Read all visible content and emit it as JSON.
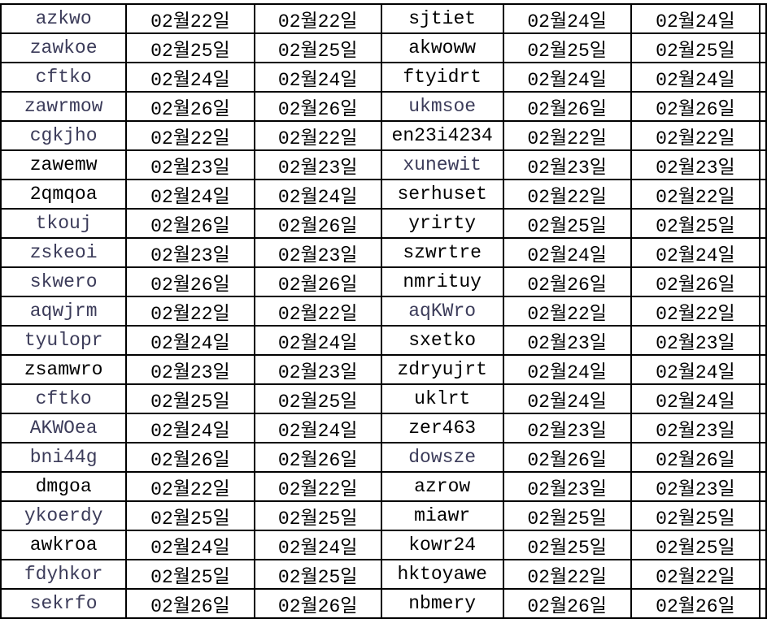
{
  "sheet": {
    "rows": [
      {
        "c": [
          "azkwo",
          "02월22일",
          "02월22일",
          "sjtiet",
          "02월24일",
          "02월24일"
        ],
        "dim": [
          true,
          false,
          false,
          false,
          false,
          false
        ]
      },
      {
        "c": [
          "zawkoe",
          "02월25일",
          "02월25일",
          "akwoww",
          "02월25일",
          "02월25일"
        ],
        "dim": [
          true,
          false,
          false,
          false,
          false,
          false
        ]
      },
      {
        "c": [
          "cftko",
          "02월24일",
          "02월24일",
          "ftyidrt",
          "02월24일",
          "02월24일"
        ],
        "dim": [
          true,
          false,
          false,
          false,
          false,
          false
        ]
      },
      {
        "c": [
          "zawrmow",
          "02월26일",
          "02월26일",
          "ukmsoe",
          "02월26일",
          "02월26일"
        ],
        "dim": [
          true,
          false,
          false,
          true,
          false,
          false
        ]
      },
      {
        "c": [
          "cgkjho",
          "02월22일",
          "02월22일",
          "en23i4234",
          "02월22일",
          "02월22일"
        ],
        "dim": [
          true,
          false,
          false,
          false,
          false,
          false
        ]
      },
      {
        "c": [
          "zawemw",
          "02월23일",
          "02월23일",
          "xunewit",
          "02월23일",
          "02월23일"
        ],
        "dim": [
          false,
          false,
          false,
          true,
          false,
          false
        ]
      },
      {
        "c": [
          "2qmqoa",
          "02월24일",
          "02월24일",
          "serhuset",
          "02월22일",
          "02월22일"
        ],
        "dim": [
          false,
          false,
          false,
          false,
          false,
          false
        ]
      },
      {
        "c": [
          "tkouj",
          "02월26일",
          "02월26일",
          "yrirty",
          "02월25일",
          "02월25일"
        ],
        "dim": [
          true,
          false,
          false,
          false,
          false,
          false
        ]
      },
      {
        "c": [
          "zskeoi",
          "02월23일",
          "02월23일",
          "szwrtre",
          "02월24일",
          "02월24일"
        ],
        "dim": [
          true,
          false,
          false,
          false,
          false,
          false
        ]
      },
      {
        "c": [
          "skwero",
          "02월26일",
          "02월26일",
          "nmrituy",
          "02월26일",
          "02월26일"
        ],
        "dim": [
          true,
          false,
          false,
          false,
          false,
          false
        ]
      },
      {
        "c": [
          "aqwjrm",
          "02월22일",
          "02월22일",
          "aqKWro",
          "02월22일",
          "02월22일"
        ],
        "dim": [
          true,
          false,
          false,
          true,
          false,
          false
        ]
      },
      {
        "c": [
          "tyulopr",
          "02월24일",
          "02월24일",
          "sxetko",
          "02월23일",
          "02월23일"
        ],
        "dim": [
          true,
          false,
          false,
          false,
          false,
          false
        ]
      },
      {
        "c": [
          "zsamwro",
          "02월23일",
          "02월23일",
          "zdryujrt",
          "02월24일",
          "02월24일"
        ],
        "dim": [
          false,
          false,
          false,
          false,
          false,
          false
        ]
      },
      {
        "c": [
          "cftko",
          "02월25일",
          "02월25일",
          "uklrt",
          "02월24일",
          "02월24일"
        ],
        "dim": [
          true,
          false,
          false,
          false,
          false,
          false
        ]
      },
      {
        "c": [
          "AKWOea",
          "02월24일",
          "02월24일",
          "zer463",
          "02월23일",
          "02월23일"
        ],
        "dim": [
          true,
          false,
          false,
          false,
          false,
          false
        ]
      },
      {
        "c": [
          "bni44g",
          "02월26일",
          "02월26일",
          "dowsze",
          "02월26일",
          "02월26일"
        ],
        "dim": [
          true,
          false,
          false,
          true,
          false,
          false
        ]
      },
      {
        "c": [
          "dmgoa",
          "02월22일",
          "02월22일",
          "azrow",
          "02월23일",
          "02월23일"
        ],
        "dim": [
          false,
          false,
          false,
          false,
          false,
          false
        ]
      },
      {
        "c": [
          "ykoerdy",
          "02월25일",
          "02월25일",
          "miawr",
          "02월25일",
          "02월25일"
        ],
        "dim": [
          true,
          false,
          false,
          false,
          false,
          false
        ]
      },
      {
        "c": [
          "awkroa",
          "02월24일",
          "02월24일",
          "kowr24",
          "02월25일",
          "02월25일"
        ],
        "dim": [
          false,
          false,
          false,
          false,
          false,
          false
        ]
      },
      {
        "c": [
          "fdyhkor",
          "02월25일",
          "02월25일",
          "hktoyawe",
          "02월22일",
          "02월22일"
        ],
        "dim": [
          true,
          false,
          false,
          false,
          false,
          false
        ]
      },
      {
        "c": [
          "sekrfo",
          "02월26일",
          "02월26일",
          "nbmery",
          "02월26일",
          "02월26일"
        ],
        "dim": [
          true,
          false,
          false,
          false,
          false,
          false
        ]
      }
    ]
  }
}
